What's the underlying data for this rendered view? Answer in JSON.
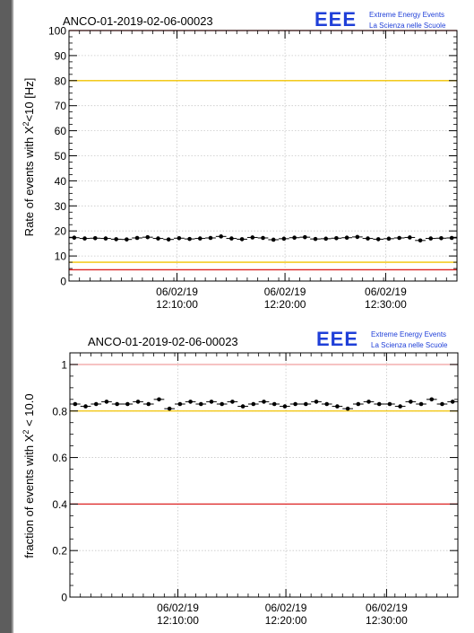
{
  "logo": {
    "letters": "EEE",
    "line1": "Extreme Energy Events",
    "line2": "La Scienza nelle Scuole"
  },
  "colors": {
    "red": "#dd2222",
    "yellow": "#f2c300",
    "pink": "#f2a8a8",
    "logo_blue": "#1f3fd8"
  },
  "chart_data": [
    {
      "type": "scatter",
      "title": "ANCO-01-2019-02-06-00023",
      "ylabel_pre": "Rate of events with X",
      "ylabel_sup": "2",
      "ylabel_post": "<10 [Hz]",
      "ylim": [
        0,
        100
      ],
      "yticks": [
        0,
        10,
        20,
        30,
        40,
        50,
        60,
        70,
        80,
        90,
        100
      ],
      "ytick_labels": [
        "0",
        "10",
        "20",
        "30",
        "40",
        "50",
        "60",
        "70",
        "80",
        "90",
        "100"
      ],
      "xtick_labels": [
        {
          "date": "06/02/19",
          "time": "12:10:00"
        },
        {
          "date": "06/02/19",
          "time": "12:20:00"
        },
        {
          "date": "06/02/19",
          "time": "12:30:00"
        }
      ],
      "hlines": [
        {
          "y": 100,
          "color": "red"
        },
        {
          "y": 80,
          "color": "yellow"
        },
        {
          "y": 7.5,
          "color": "yellow"
        },
        {
          "y": 4.5,
          "color": "red"
        }
      ],
      "x": [
        0.5,
        1.5,
        2.5,
        3.5,
        4.5,
        5.5,
        6.5,
        7.5,
        8.5,
        9.5,
        10.5,
        11.5,
        12.5,
        13.5,
        14.5,
        15.5,
        16.5,
        17.5,
        18.5,
        19.5,
        20.5,
        21.5,
        22.5,
        23.5,
        24.5,
        25.5,
        26.5,
        27.5,
        28.5,
        29.5,
        30.5,
        31.5,
        32.5,
        33.5,
        34.5,
        35.5,
        36.5
      ],
      "y": [
        17.3,
        17.0,
        17.1,
        17.0,
        16.7,
        16.6,
        17.2,
        17.5,
        17.0,
        16.6,
        17.1,
        16.8,
        17.0,
        17.2,
        17.8,
        17.0,
        16.7,
        17.4,
        17.2,
        16.5,
        16.9,
        17.3,
        17.5,
        16.8,
        16.9,
        17.1,
        17.3,
        17.6,
        17.0,
        16.7,
        16.9,
        17.2,
        17.4,
        16.2,
        17.0,
        17.1,
        17.2
      ],
      "yerr": 0.7,
      "grid": true
    },
    {
      "type": "scatter",
      "title": "ANCO-01-2019-02-06-00023",
      "ylabel_pre": "fraction of events with X",
      "ylabel_sup": "2",
      "ylabel_post": " < 10.0",
      "ylim": [
        0,
        1.05
      ],
      "yticks": [
        0,
        0.2,
        0.4,
        0.6,
        0.8,
        1
      ],
      "ytick_labels": [
        "0",
        "0.2",
        "0.4",
        "0.6",
        "0.8",
        "1"
      ],
      "xtick_labels": [
        {
          "date": "06/02/19",
          "time": "12:10:00"
        },
        {
          "date": "06/02/19",
          "time": "12:20:00"
        },
        {
          "date": "06/02/19",
          "time": "12:30:00"
        }
      ],
      "hlines": [
        {
          "y": 1.0,
          "color": "pink"
        },
        {
          "y": 0.8,
          "color": "yellow"
        },
        {
          "y": 0.4,
          "color": "red"
        }
      ],
      "x": [
        0.5,
        1.5,
        2.5,
        3.5,
        4.5,
        5.5,
        6.5,
        7.5,
        8.5,
        9.5,
        10.5,
        11.5,
        12.5,
        13.5,
        14.5,
        15.5,
        16.5,
        17.5,
        18.5,
        19.5,
        20.5,
        21.5,
        22.5,
        23.5,
        24.5,
        25.5,
        26.5,
        27.5,
        28.5,
        29.5,
        30.5,
        31.5,
        32.5,
        33.5,
        34.5,
        35.5,
        36.5
      ],
      "y": [
        0.83,
        0.82,
        0.83,
        0.84,
        0.83,
        0.83,
        0.84,
        0.83,
        0.85,
        0.81,
        0.83,
        0.84,
        0.83,
        0.84,
        0.83,
        0.84,
        0.82,
        0.83,
        0.84,
        0.83,
        0.82,
        0.83,
        0.83,
        0.84,
        0.83,
        0.82,
        0.81,
        0.83,
        0.84,
        0.83,
        0.83,
        0.82,
        0.84,
        0.83,
        0.85,
        0.83,
        0.84
      ],
      "yerr": 0.006,
      "grid": true
    }
  ]
}
